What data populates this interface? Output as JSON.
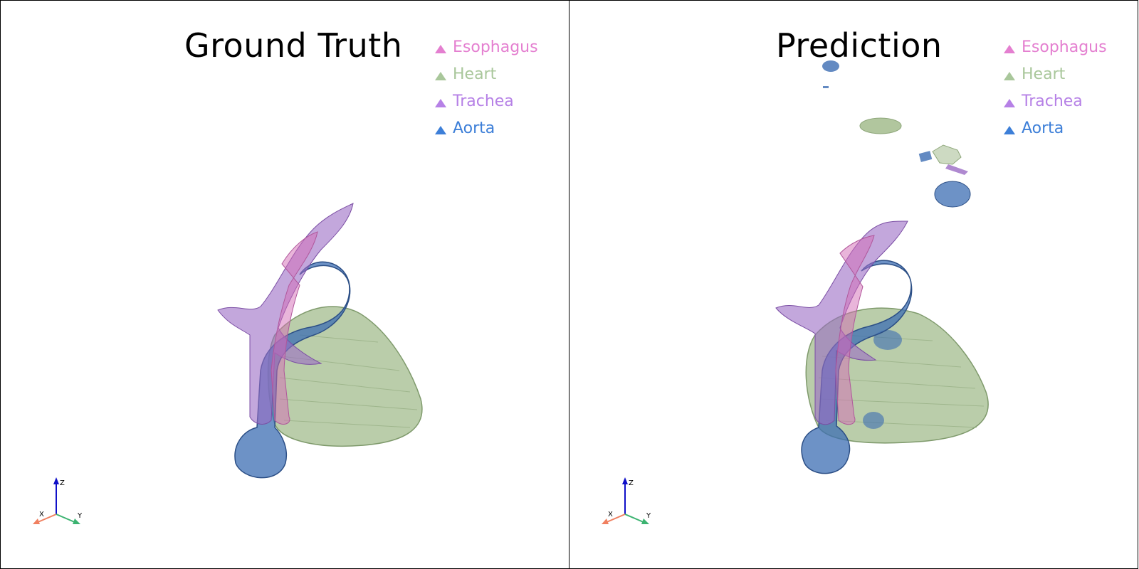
{
  "panels": {
    "left": {
      "title": "Ground Truth"
    },
    "right": {
      "title": "Prediction"
    }
  },
  "legend": [
    {
      "label": "Esophagus",
      "color": "#e47fd0"
    },
    {
      "label": "Heart",
      "color": "#a9c79b"
    },
    {
      "label": "Trachea",
      "color": "#b681e6"
    },
    {
      "label": "Aorta",
      "color": "#3d7fd8"
    }
  ],
  "axes": {
    "x": "X",
    "y": "Y",
    "z": "Z"
  },
  "colors": {
    "esophagus": "#d46bb5",
    "heart": "#a3bc8d",
    "trachea": "#9b6cc4",
    "aorta": "#3c6db3",
    "axis_x": "#f08060",
    "axis_y": "#3cb371",
    "axis_z": "#1010c8"
  }
}
